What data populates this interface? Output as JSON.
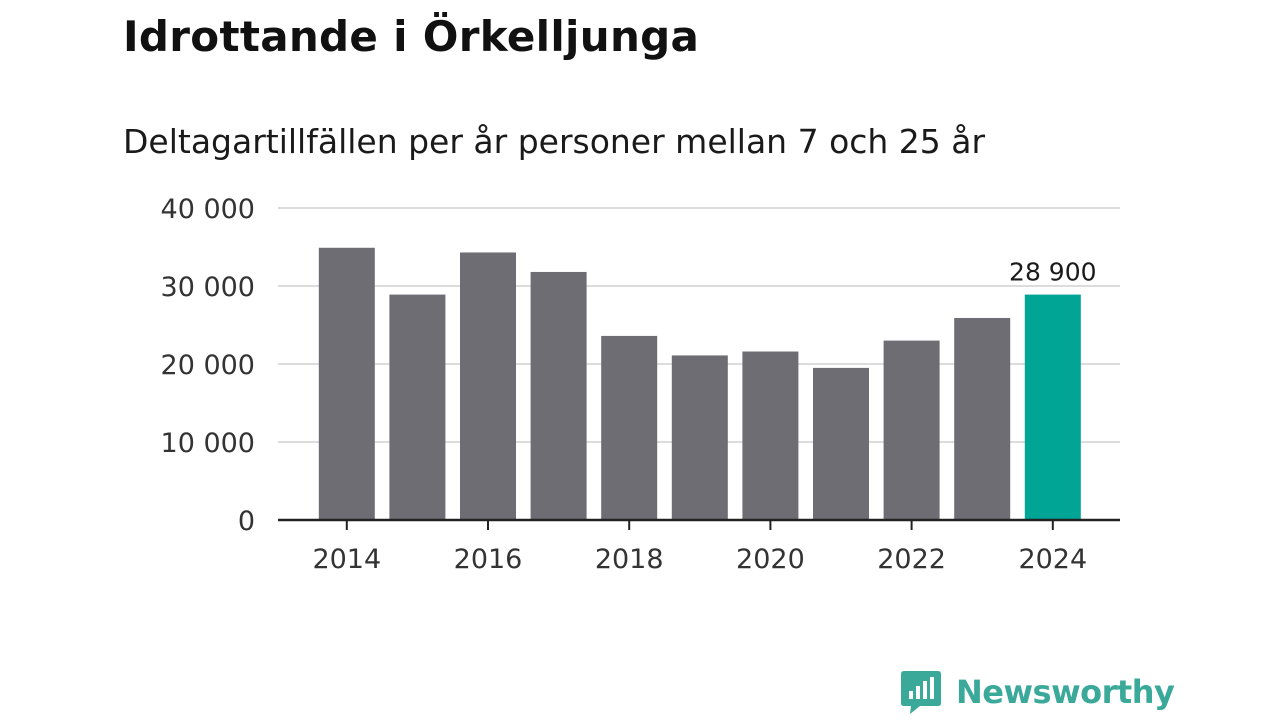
{
  "header": {
    "title": "Idrottande i Örkelljunga",
    "subtitle": "Deltagartillfällen per år personer mellan 7 och 25 år"
  },
  "brand": {
    "name": "Newsworthy",
    "color": "#3aa99a"
  },
  "colors": {
    "bar": "#6e6d73",
    "highlight": "#00a596",
    "grid": "#dcdcdc",
    "axis": "#222222",
    "text": "#333333"
  },
  "chart_data": {
    "type": "bar",
    "title": "Idrottande i Örkelljunga",
    "subtitle": "Deltagartillfällen per år personer mellan 7 och 25 år",
    "xlabel": "",
    "ylabel": "",
    "ylim": [
      0,
      40000
    ],
    "y_ticks": [
      0,
      10000,
      20000,
      30000,
      40000
    ],
    "y_tick_labels": [
      "0",
      "10 000",
      "20 000",
      "30 000",
      "40 000"
    ],
    "categories": [
      2014,
      2015,
      2016,
      2017,
      2018,
      2019,
      2020,
      2021,
      2022,
      2023,
      2024
    ],
    "x_tick_labels": [
      "2014",
      "2016",
      "2018",
      "2020",
      "2022",
      "2024"
    ],
    "values": [
      34900,
      28900,
      34300,
      31800,
      23600,
      21100,
      21600,
      19500,
      23000,
      25900,
      28900
    ],
    "highlight_index": 10,
    "annotation": "28 900",
    "grid": true
  }
}
